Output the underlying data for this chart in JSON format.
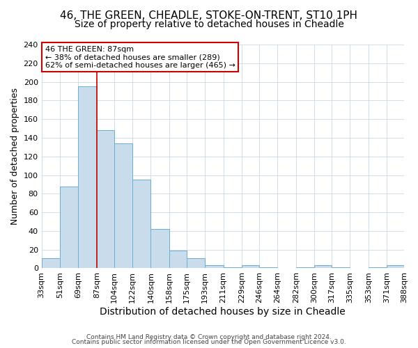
{
  "title1": "46, THE GREEN, CHEADLE, STOKE-ON-TRENT, ST10 1PH",
  "title2": "Size of property relative to detached houses in Cheadle",
  "xlabel": "Distribution of detached houses by size in Cheadle",
  "ylabel": "Number of detached properties",
  "bin_edges": [
    33,
    51,
    69,
    87,
    104,
    122,
    140,
    158,
    175,
    193,
    211,
    229,
    246,
    264,
    282,
    300,
    317,
    335,
    353,
    371,
    388
  ],
  "bin_labels": [
    "33sqm",
    "51sqm",
    "69sqm",
    "87sqm",
    "104sqm",
    "122sqm",
    "140sqm",
    "158sqm",
    "175sqm",
    "193sqm",
    "211sqm",
    "229sqm",
    "246sqm",
    "264sqm",
    "282sqm",
    "300sqm",
    "317sqm",
    "335sqm",
    "353sqm",
    "371sqm",
    "388sqm"
  ],
  "counts": [
    11,
    88,
    195,
    148,
    134,
    95,
    42,
    19,
    11,
    3,
    1,
    3,
    1,
    0,
    1,
    3,
    1,
    0,
    1,
    3,
    0
  ],
  "bar_color": "#c8dcec",
  "bar_edge_color": "#6baed6",
  "vline_x": 87,
  "vline_color": "#cc0000",
  "annotation_line1": "46 THE GREEN: 87sqm",
  "annotation_line2": "← 38% of detached houses are smaller (289)",
  "annotation_line3": "62% of semi-detached houses are larger (465) →",
  "annotation_box_edge_color": "#cc0000",
  "annotation_box_face_color": "#ffffff",
  "ylim": [
    0,
    240
  ],
  "yticks": [
    0,
    20,
    40,
    60,
    80,
    100,
    120,
    140,
    160,
    180,
    200,
    220,
    240
  ],
  "footer1": "Contains HM Land Registry data © Crown copyright and database right 2024.",
  "footer2": "Contains public sector information licensed under the Open Government Licence v3.0.",
  "background_color": "#ffffff",
  "grid_color": "#d0dce8",
  "title1_fontsize": 11,
  "title2_fontsize": 10,
  "xlabel_fontsize": 10,
  "ylabel_fontsize": 9,
  "tick_fontsize": 8,
  "footer_fontsize": 6.5,
  "annot_fontsize": 8
}
